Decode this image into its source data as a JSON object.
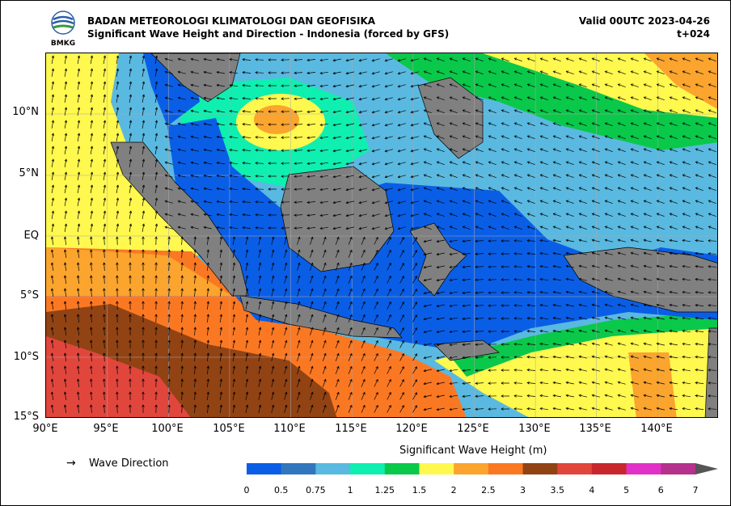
{
  "header": {
    "agency": "BADAN METEOROLOGI KLIMATOLOGI DAN GEOFISIKA",
    "subtitle": "Significant Wave Height and Direction - Indonesia (forced by GFS)",
    "valid": "Valid 00UTC 2023-04-26",
    "step": "t+024",
    "logo_text": "BMKG"
  },
  "map": {
    "lat_labels": [
      "10°N",
      "5°N",
      "EQ",
      "5°S",
      "10°S",
      "15°S"
    ],
    "lon_labels": [
      "90°E",
      "95°E",
      "100°E",
      "105°E",
      "110°E",
      "115°E",
      "120°E",
      "125°E",
      "130°E",
      "135°E",
      "140°E"
    ],
    "lon_range": [
      90,
      145
    ],
    "lat_range": [
      -15,
      15
    ],
    "grid": true
  },
  "legend": {
    "arrow_glyph": "→",
    "direction_label": "Wave Direction"
  },
  "colorbar": {
    "title": "Significant Wave Height (m)",
    "ticks": [
      "0",
      "0.5",
      "0.75",
      "1",
      "1.25",
      "1.5",
      "2",
      "2.5",
      "3",
      "3.5",
      "4",
      "5",
      "6",
      "7"
    ],
    "colors": [
      "#0a5ee6",
      "#3276bd",
      "#5ab9e0",
      "#0fefb0",
      "#0ac84a",
      "#fff84e",
      "#fba42e",
      "#fb7823",
      "#914314",
      "#e1463c",
      "#c8282d",
      "#e132c8",
      "#b4328c"
    ],
    "extend_color": "#555555"
  },
  "colors": {
    "land": "#808080",
    "border": "#000000"
  }
}
